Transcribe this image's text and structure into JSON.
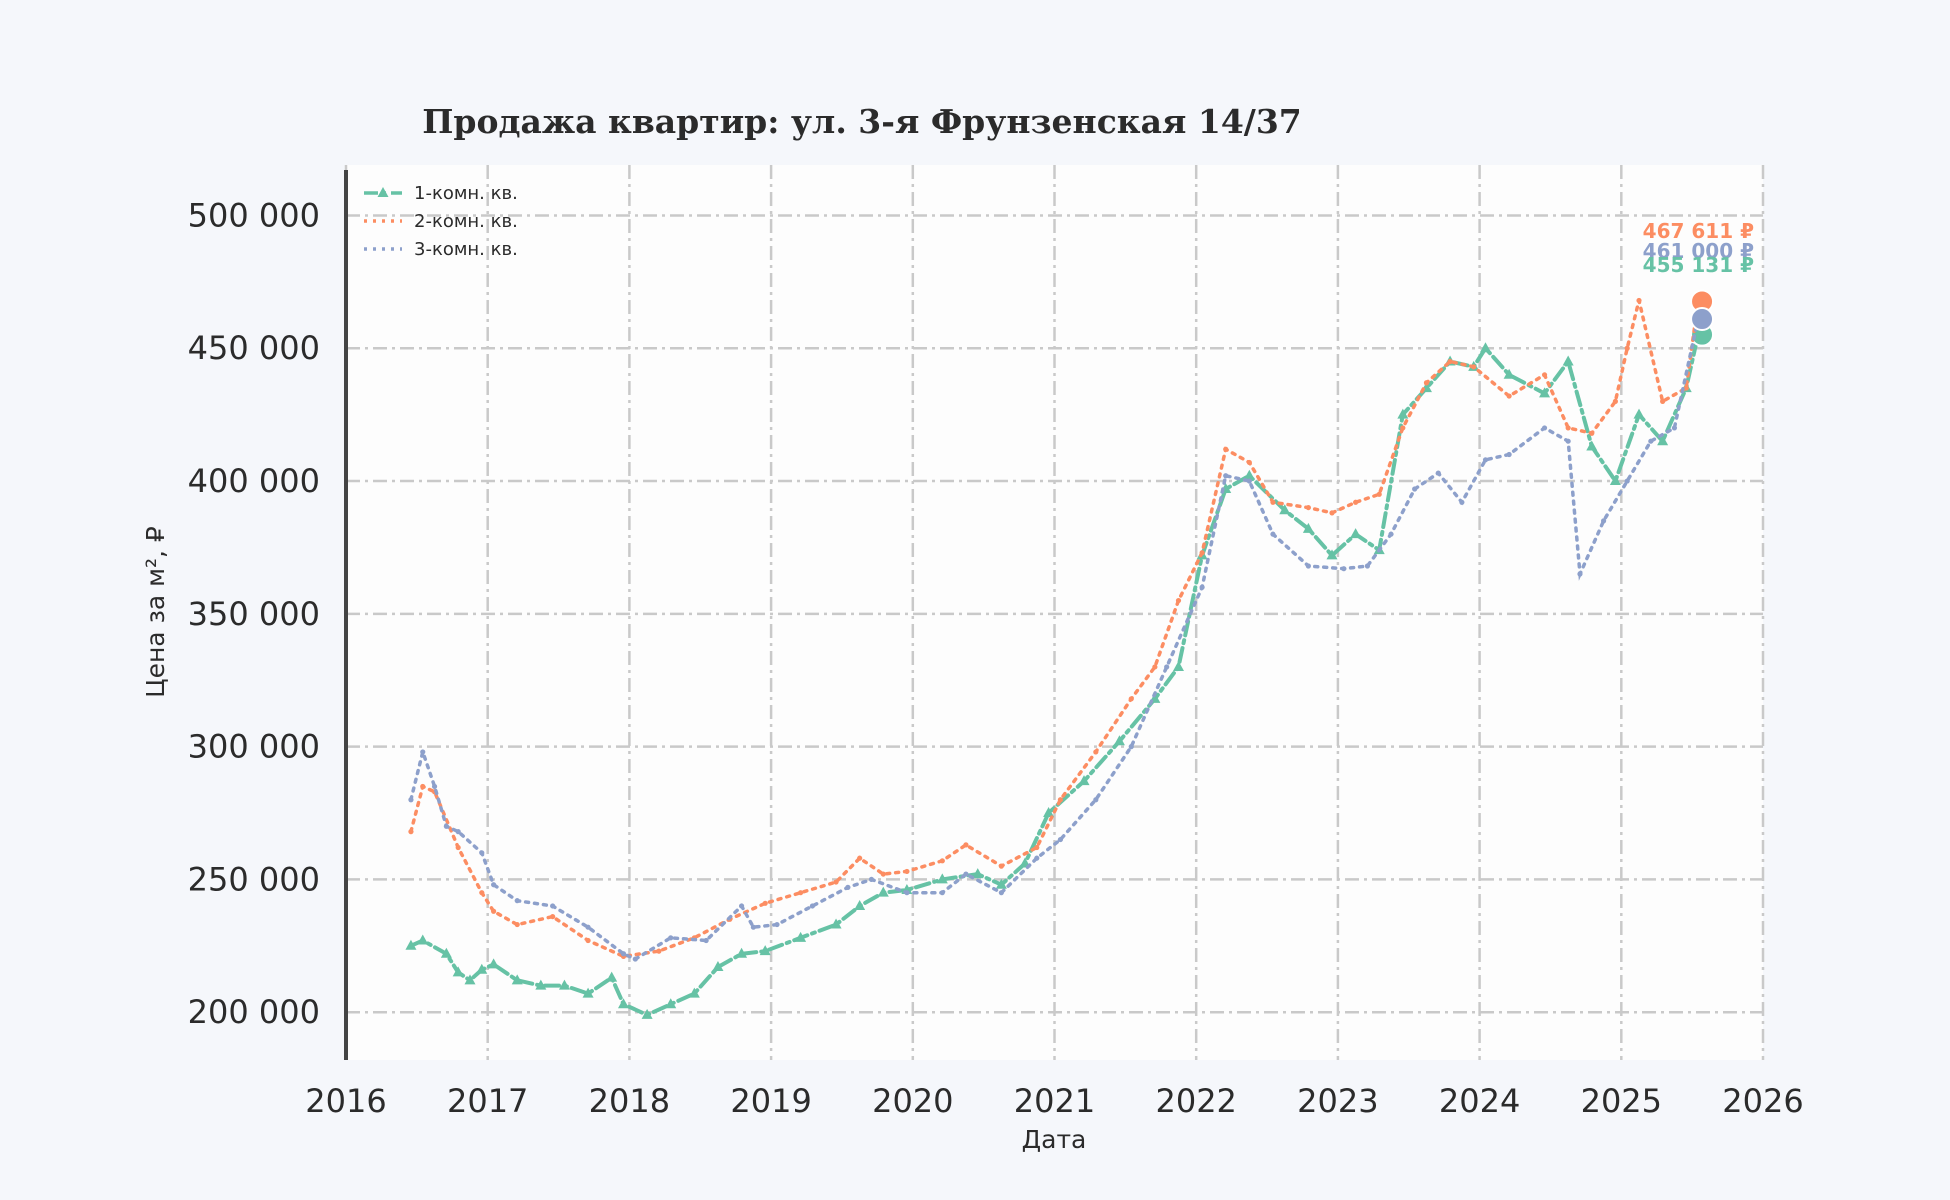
{
  "chart_data": {
    "type": "line",
    "title": "Продажа квартир: ул. 3-я Фрунзенская 14/37",
    "xlabel": "Дата",
    "ylabel": "Цена за м², ₽",
    "xlim": [
      2016,
      2026
    ],
    "ylim": [
      182000,
      519000
    ],
    "x_ticks": [
      "2016",
      "2017",
      "2018",
      "2019",
      "2020",
      "2021",
      "2022",
      "2023",
      "2024",
      "2025",
      "2026"
    ],
    "y_ticks": [
      {
        "value": 200000,
        "label": "200 000"
      },
      {
        "value": 250000,
        "label": "250 000"
      },
      {
        "value": 300000,
        "label": "300 000"
      },
      {
        "value": 350000,
        "label": "350 000"
      },
      {
        "value": 400000,
        "label": "400 000"
      },
      {
        "value": 450000,
        "label": "450 000"
      },
      {
        "value": 500000,
        "label": "500 000"
      }
    ],
    "grid": true,
    "legend_position": "top-left",
    "series": [
      {
        "name": "1-комн. кв.",
        "color": "#66c2a5",
        "style": "dash-dot with triangle markers",
        "x": [
          "2016-06",
          "2016-07",
          "2016-09",
          "2016-10",
          "2016-11",
          "2016-12",
          "2017-01",
          "2017-03",
          "2017-05",
          "2017-07",
          "2017-09",
          "2017-11",
          "2017-12",
          "2018-02",
          "2018-04",
          "2018-06",
          "2018-08",
          "2018-10",
          "2018-12",
          "2019-03",
          "2019-06",
          "2019-08",
          "2019-10",
          "2019-12",
          "2020-03",
          "2020-06",
          "2020-08",
          "2020-10",
          "2020-12",
          "2021-03",
          "2021-06",
          "2021-09",
          "2021-11",
          "2022-01",
          "2022-03",
          "2022-05",
          "2022-08",
          "2022-10",
          "2022-12",
          "2023-02",
          "2023-04",
          "2023-06",
          "2023-08",
          "2023-10",
          "2023-12",
          "2024-01",
          "2024-03",
          "2024-06",
          "2024-08",
          "2024-10",
          "2024-12",
          "2025-02",
          "2025-04",
          "2025-06",
          "2025-07"
        ],
        "values": [
          225000,
          227000,
          222000,
          215000,
          212000,
          216000,
          218000,
          212000,
          210000,
          210000,
          207000,
          213000,
          203000,
          199000,
          203000,
          207000,
          217000,
          222000,
          223000,
          228000,
          233000,
          240000,
          245000,
          246000,
          250000,
          252000,
          248000,
          256000,
          275000,
          287000,
          302000,
          318000,
          330000,
          372000,
          397000,
          402000,
          389000,
          382000,
          372000,
          380000,
          374000,
          425000,
          435000,
          445000,
          443000,
          450000,
          440000,
          433000,
          445000,
          413000,
          400000,
          425000,
          415000,
          435000,
          455131
        ]
      },
      {
        "name": "2-комн. кв.",
        "color": "#fc8d62",
        "style": "dotted",
        "x": [
          "2016-06",
          "2016-07",
          "2016-08",
          "2016-10",
          "2016-12",
          "2017-01",
          "2017-03",
          "2017-06",
          "2017-09",
          "2017-12",
          "2018-03",
          "2018-06",
          "2018-09",
          "2018-12",
          "2019-03",
          "2019-06",
          "2019-08",
          "2019-10",
          "2019-12",
          "2020-03",
          "2020-05",
          "2020-08",
          "2020-11",
          "2021-01",
          "2021-04",
          "2021-07",
          "2021-09",
          "2021-11",
          "2022-01",
          "2022-03",
          "2022-05",
          "2022-07",
          "2022-10",
          "2022-12",
          "2023-02",
          "2023-04",
          "2023-06",
          "2023-08",
          "2023-10",
          "2023-12",
          "2024-03",
          "2024-06",
          "2024-08",
          "2024-10",
          "2024-12",
          "2025-01",
          "2025-02",
          "2025-04",
          "2025-06",
          "2025-07"
        ],
        "values": [
          268000,
          285000,
          283000,
          262000,
          245000,
          238000,
          233000,
          236000,
          227000,
          221000,
          223000,
          228000,
          235000,
          241000,
          245000,
          249000,
          258000,
          252000,
          253000,
          257000,
          263000,
          255000,
          262000,
          280000,
          298000,
          318000,
          330000,
          355000,
          373000,
          412000,
          407000,
          392000,
          390000,
          388000,
          392000,
          395000,
          420000,
          437000,
          445000,
          443000,
          432000,
          440000,
          420000,
          418000,
          430000,
          450000,
          468000,
          430000,
          435000,
          467611
        ]
      },
      {
        "name": "3-комн. кв.",
        "color": "#8da0cb",
        "style": "dotted",
        "x": [
          "2016-06",
          "2016-07",
          "2016-08",
          "2016-09",
          "2016-10",
          "2016-12",
          "2017-01",
          "2017-03",
          "2017-06",
          "2017-09",
          "2017-12",
          "2018-01",
          "2018-04",
          "2018-07",
          "2018-10",
          "2018-11",
          "2019-01",
          "2019-04",
          "2019-07",
          "2019-09",
          "2019-12",
          "2020-03",
          "2020-05",
          "2020-08",
          "2020-11",
          "2021-01",
          "2021-04",
          "2021-07",
          "2021-10",
          "2022-01",
          "2022-03",
          "2022-05",
          "2022-07",
          "2022-10",
          "2023-01",
          "2023-03",
          "2023-05",
          "2023-07",
          "2023-09",
          "2023-11",
          "2024-01",
          "2024-03",
          "2024-06",
          "2024-08",
          "2024-09",
          "2024-11",
          "2025-01",
          "2025-03",
          "2025-05",
          "2025-07"
        ],
        "values": [
          280000,
          298000,
          285000,
          270000,
          268000,
          260000,
          248000,
          242000,
          240000,
          232000,
          222000,
          220000,
          228000,
          227000,
          240000,
          232000,
          233000,
          240000,
          247000,
          250000,
          245000,
          245000,
          252000,
          245000,
          258000,
          265000,
          280000,
          300000,
          330000,
          360000,
          402000,
          400000,
          380000,
          368000,
          367000,
          368000,
          380000,
          397000,
          403000,
          392000,
          408000,
          410000,
          420000,
          415000,
          365000,
          385000,
          400000,
          415000,
          420000,
          461000
        ]
      }
    ],
    "end_labels": [
      {
        "series": "2-комн. кв.",
        "text": "467 611 ₽",
        "value": 467611,
        "color": "#fc8d62"
      },
      {
        "series": "3-комн. кв.",
        "text": "461 000 ₽",
        "value": 461000,
        "color": "#8da0cb"
      },
      {
        "series": "1-комн. кв.",
        "text": "455 131 ₽",
        "value": 455131,
        "color": "#66c2a5"
      }
    ]
  }
}
